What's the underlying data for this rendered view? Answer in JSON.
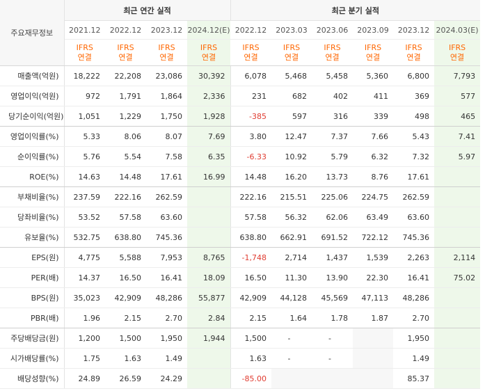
{
  "header": {
    "label_col": "주요재무정보",
    "annual_group": "최근 연간 실적",
    "quarter_group": "최근 분기 실적"
  },
  "periods": [
    {
      "label": "2021.12",
      "estimate": false
    },
    {
      "label": "2022.12",
      "estimate": false
    },
    {
      "label": "2023.12",
      "estimate": false
    },
    {
      "label": "2024.12(E)",
      "estimate": true
    },
    {
      "label": "2022.12",
      "estimate": false
    },
    {
      "label": "2023.03",
      "estimate": false
    },
    {
      "label": "2023.06",
      "estimate": false
    },
    {
      "label": "2023.09",
      "estimate": false
    },
    {
      "label": "2023.12",
      "estimate": false
    },
    {
      "label": "2024.03(E)",
      "estimate": true
    }
  ],
  "standard": {
    "line1": "IFRS",
    "line2": "연결"
  },
  "rows": [
    {
      "label": "매출액(억원)",
      "values": [
        "18,222",
        "22,208",
        "23,086",
        "30,392",
        "6,078",
        "5,468",
        "5,458",
        "5,360",
        "6,800",
        "7,793"
      ]
    },
    {
      "label": "영업이익(억원)",
      "values": [
        "972",
        "1,791",
        "1,864",
        "2,336",
        "231",
        "682",
        "402",
        "411",
        "369",
        "577"
      ]
    },
    {
      "label": "당기순이익(억원)",
      "values": [
        "1,051",
        "1,229",
        "1,750",
        "1,928",
        "-385",
        "597",
        "316",
        "339",
        "498",
        "465"
      ]
    },
    {
      "label": "영업이익률(%)",
      "values": [
        "5.33",
        "8.06",
        "8.07",
        "7.69",
        "3.80",
        "12.47",
        "7.37",
        "7.66",
        "5.43",
        "7.41"
      ]
    },
    {
      "label": "순이익률(%)",
      "values": [
        "5.76",
        "5.54",
        "7.58",
        "6.35",
        "-6.33",
        "10.92",
        "5.79",
        "6.32",
        "7.32",
        "5.97"
      ]
    },
    {
      "label": "ROE(%)",
      "values": [
        "14.63",
        "14.48",
        "17.61",
        "16.99",
        "14.48",
        "16.20",
        "13.73",
        "8.76",
        "17.61",
        ""
      ]
    },
    {
      "label": "부채비율(%)",
      "values": [
        "237.59",
        "222.16",
        "262.59",
        "",
        "222.16",
        "215.51",
        "225.06",
        "224.75",
        "262.59",
        ""
      ]
    },
    {
      "label": "당좌비율(%)",
      "values": [
        "53.52",
        "57.58",
        "63.60",
        "",
        "57.58",
        "56.32",
        "62.06",
        "63.49",
        "63.60",
        ""
      ]
    },
    {
      "label": "유보율(%)",
      "values": [
        "532.75",
        "638.80",
        "745.36",
        "",
        "638.80",
        "662.91",
        "691.52",
        "722.12",
        "745.36",
        ""
      ]
    },
    {
      "label": "EPS(원)",
      "values": [
        "4,775",
        "5,588",
        "7,953",
        "8,765",
        "-1,748",
        "2,714",
        "1,437",
        "1,539",
        "2,263",
        "2,114"
      ]
    },
    {
      "label": "PER(배)",
      "values": [
        "14.37",
        "16.50",
        "16.41",
        "18.09",
        "16.50",
        "11.30",
        "13.90",
        "22.30",
        "16.41",
        "75.02"
      ]
    },
    {
      "label": "BPS(원)",
      "values": [
        "35,023",
        "42,909",
        "48,286",
        "55,877",
        "42,909",
        "44,128",
        "45,569",
        "47,113",
        "48,286",
        ""
      ]
    },
    {
      "label": "PBR(배)",
      "values": [
        "1.96",
        "2.15",
        "2.70",
        "2.84",
        "2.15",
        "1.64",
        "1.78",
        "1.87",
        "2.70",
        ""
      ]
    },
    {
      "label": "주당배당금(원)",
      "values": [
        "1,200",
        "1,500",
        "1,950",
        "1,944",
        "1,500",
        "-",
        "-",
        "",
        "1,950",
        ""
      ]
    },
    {
      "label": "시가배당률(%)",
      "values": [
        "1.75",
        "1.63",
        "1.49",
        "",
        "1.63",
        "-",
        "-",
        "",
        "1.49",
        ""
      ]
    },
    {
      "label": "배당성향(%)",
      "values": [
        "24.89",
        "26.59",
        "24.29",
        "",
        "-85.00",
        "",
        "",
        "",
        "85.37",
        ""
      ]
    }
  ]
}
